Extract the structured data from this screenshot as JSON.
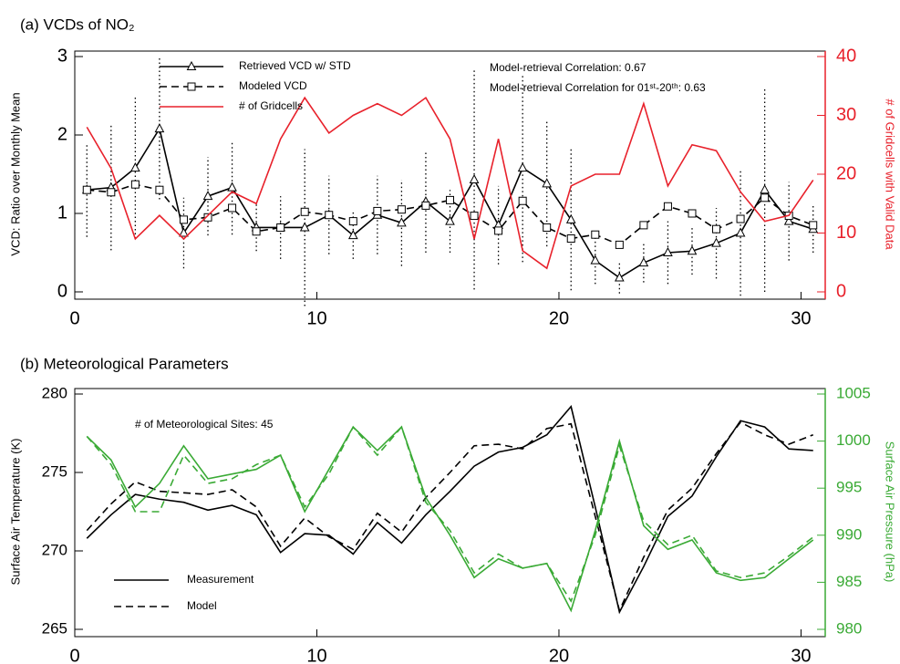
{
  "chart_data": [
    {
      "type": "line",
      "title": "(a) VCDs of NO₂",
      "ylabel": "VCD: Ratio over Monthly Mean",
      "y2label": "# of Gridcells with Valid Data",
      "y2color": "#e8212b",
      "annotations": [
        "Model-retrieval Correlation: 0.67",
        "Model-retrieval Correlation for 01ˢᵗ-20ᵗʰ: 0.63"
      ],
      "legend": "upper left",
      "x": [
        0.5,
        1.5,
        2.5,
        3.5,
        4.5,
        5.5,
        6.5,
        7.5,
        8.5,
        9.5,
        10.5,
        11.5,
        12.5,
        13.5,
        14.5,
        15.5,
        16.5,
        17.5,
        18.5,
        19.5,
        20.5,
        21.5,
        22.5,
        23.5,
        24.5,
        25.5,
        26.5,
        27.5,
        28.5,
        29.5,
        30.5
      ],
      "xlim": [
        0,
        31
      ],
      "xticks": [
        0,
        10,
        20,
        30
      ],
      "ylim": [
        0,
        3
      ],
      "yticks": [
        0,
        1,
        2,
        3
      ],
      "y2lim": [
        0,
        40
      ],
      "y2ticks": [
        0,
        10,
        20,
        30,
        40
      ],
      "series": [
        {
          "name": "Retrieved VCD w/ STD",
          "color": "#000000",
          "style": "solid",
          "marker": "triangle",
          "values": [
            1.3,
            1.33,
            1.58,
            2.08,
            0.75,
            1.22,
            1.33,
            0.82,
            0.82,
            0.82,
            0.98,
            0.72,
            0.98,
            0.88,
            1.15,
            0.9,
            1.43,
            0.85,
            1.58,
            1.38,
            0.92,
            0.4,
            0.18,
            0.37,
            0.5,
            0.52,
            0.62,
            0.75,
            1.3,
            0.9,
            0.8
          ],
          "errors": [
            0.6,
            0.8,
            0.9,
            0.9,
            0.45,
            0.5,
            0.6,
            0.3,
            0.4,
            1.0,
            0.5,
            0.3,
            0.5,
            0.55,
            0.65,
            0.4,
            1.4,
            0.5,
            1.2,
            0.8,
            0.9,
            0.3,
            0.2,
            0.25,
            0.4,
            0.3,
            0.45,
            0.8,
            1.3,
            0.5,
            0.3
          ]
        },
        {
          "name": "Modeled VCD",
          "color": "#000000",
          "style": "dashed",
          "marker": "square",
          "values": [
            1.3,
            1.27,
            1.37,
            1.3,
            0.92,
            0.95,
            1.07,
            0.77,
            0.82,
            1.02,
            0.98,
            0.9,
            1.03,
            1.05,
            1.1,
            1.17,
            0.97,
            0.78,
            1.16,
            0.82,
            0.68,
            0.73,
            0.6,
            0.85,
            1.09,
            1.0,
            0.8,
            0.93,
            1.2,
            0.97,
            0.85
          ]
        },
        {
          "name": "# of Gridcells",
          "color": "#e8212b",
          "style": "solid",
          "axis": "y2",
          "values": [
            28,
            21,
            9,
            13,
            9,
            13,
            17,
            15,
            26,
            33,
            27,
            30,
            32,
            30,
            33,
            26,
            9,
            26,
            7,
            4,
            18,
            20,
            20,
            32,
            18,
            25,
            24,
            17,
            12,
            13,
            19
          ]
        }
      ]
    },
    {
      "type": "line",
      "title": "(b) Meteorological Parameters",
      "ylabel": "Surface Air Temperature (K)",
      "y2label": "Surface Air Pressure (hPa)",
      "y2color": "#3aaa35",
      "annotations": [
        "# of Meteorological Sites: 45"
      ],
      "legend": "lower left",
      "x": [
        0.5,
        1.5,
        2.5,
        3.5,
        4.5,
        5.5,
        6.5,
        7.5,
        8.5,
        9.5,
        10.5,
        11.5,
        12.5,
        13.5,
        14.5,
        15.5,
        16.5,
        17.5,
        18.5,
        19.5,
        20.5,
        21.5,
        22.5,
        23.5,
        24.5,
        25.5,
        26.5,
        27.5,
        28.5,
        29.5,
        30.5
      ],
      "xlim": [
        0,
        31
      ],
      "xticks": [
        0,
        10,
        20,
        30
      ],
      "ylim": [
        265,
        280
      ],
      "yticks": [
        265,
        270,
        275,
        280
      ],
      "y2lim": [
        980,
        1005
      ],
      "y2ticks": [
        980,
        985,
        990,
        995,
        1000,
        1005
      ],
      "series": [
        {
          "name": "Measurement",
          "color": "#000000",
          "style": "solid",
          "values": [
            270.8,
            272.3,
            273.6,
            273.3,
            273.1,
            272.6,
            272.9,
            272.3,
            269.9,
            271.1,
            271.0,
            269.8,
            271.8,
            270.5,
            272.3,
            273.8,
            275.4,
            276.3,
            276.6,
            277.4,
            279.2,
            272.8,
            266.1,
            269.0,
            272.2,
            273.5,
            276.0,
            278.3,
            277.9,
            276.5,
            276.4
          ]
        },
        {
          "name": "Model",
          "color": "#000000",
          "style": "dashed",
          "values": [
            271.3,
            273.0,
            274.4,
            273.8,
            273.7,
            273.6,
            273.9,
            272.8,
            270.3,
            272.1,
            270.9,
            270.1,
            272.4,
            271.2,
            273.4,
            275.0,
            276.7,
            276.8,
            276.5,
            277.8,
            278.1,
            272.2,
            266.2,
            269.6,
            272.6,
            274.0,
            276.2,
            278.2,
            277.4,
            276.8,
            277.4
          ]
        },
        {
          "color": "#3aaa35",
          "style": "solid",
          "axis": "y2",
          "values": [
            1000.5,
            998,
            993,
            995.5,
            999.5,
            996,
            996.5,
            997,
            998.5,
            992.5,
            997,
            1001.5,
            999,
            1001.5,
            994,
            990,
            985.5,
            987.5,
            986.5,
            987,
            982,
            990.5,
            1000,
            991,
            988.5,
            989.5,
            986,
            985.2,
            985.5,
            987.5,
            989.5
          ]
        },
        {
          "color": "#3aaa35",
          "style": "dashed",
          "axis": "y2",
          "values": [
            1000.5,
            997.5,
            992.5,
            992.5,
            998.5,
            995.5,
            996,
            997.5,
            998.5,
            993,
            996.5,
            1001.5,
            998.5,
            1001.5,
            993.5,
            990.5,
            986,
            988,
            986.5,
            987,
            983,
            990,
            999.5,
            991.5,
            989,
            990,
            986.2,
            985.5,
            986,
            987.8,
            989.8
          ]
        }
      ]
    }
  ]
}
